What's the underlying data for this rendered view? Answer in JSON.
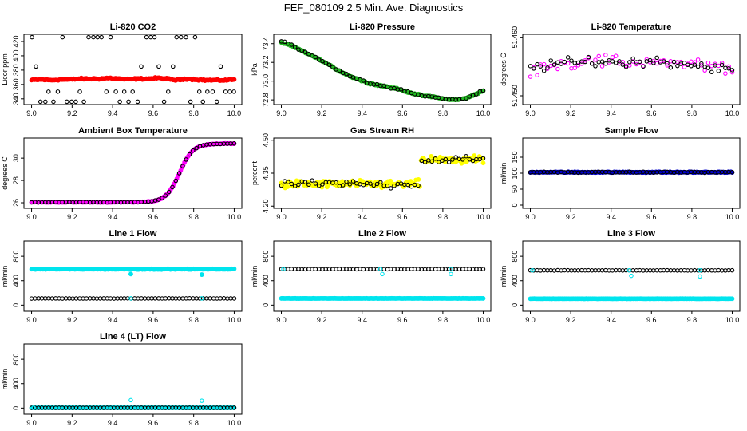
{
  "title": "FEF_080109  2.5 Min. Ave. Diagnostics",
  "chart_data": [
    {
      "type": "scatter",
      "title": "Li-820 CO2",
      "ylabel": "Licor ppm",
      "xlim": [
        9.0,
        10.0
      ],
      "ylim": [
        332,
        430
      ],
      "xticks": [
        "9.0",
        "9.2",
        "9.4",
        "9.6",
        "9.8",
        "10.0"
      ],
      "yticks": [
        "340",
        "360",
        "380",
        "400",
        "420"
      ],
      "series": [
        {
          "style": "filled",
          "color": "#ff0000",
          "gen": "wave",
          "values": [
            366,
            367,
            366,
            367,
            367,
            368,
            368,
            368,
            369,
            368,
            367,
            368,
            368,
            369,
            368,
            366,
            368,
            367,
            366,
            366,
            366,
            367
          ],
          "noise": 1.5
        },
        {
          "style": "open",
          "color": "#000000",
          "gen": "levels",
          "levels": [
            336,
            350,
            385,
            426
          ]
        }
      ]
    },
    {
      "type": "scatter",
      "title": "Li-820 Pressure",
      "ylabel": "kPa",
      "xlim": [
        9.0,
        10.0
      ],
      "ylim": [
        72.75,
        73.5
      ],
      "xticks": [
        "9.0",
        "9.2",
        "9.4",
        "9.6",
        "9.8",
        "10.0"
      ],
      "yticks": [
        "72.8",
        "73.0",
        "73.2",
        "73.4"
      ],
      "series": [
        {
          "style": "filled",
          "color": "#22bb22",
          "gen": "wave",
          "values": [
            73.41,
            73.38,
            73.33,
            73.28,
            73.23,
            73.17,
            73.11,
            73.06,
            73.02,
            72.98,
            72.96,
            72.94,
            72.92,
            72.89,
            72.86,
            72.84,
            72.83,
            72.81,
            72.8,
            72.81,
            72.85,
            72.9
          ],
          "noise": 0.01
        },
        {
          "style": "open",
          "color": "#000000",
          "gen": "wave",
          "values": [
            73.43,
            73.39,
            73.33,
            73.28,
            73.23,
            73.17,
            73.11,
            73.06,
            73.02,
            72.98,
            72.96,
            72.94,
            72.92,
            72.89,
            72.86,
            72.84,
            72.83,
            72.81,
            72.8,
            72.81,
            72.85,
            72.9
          ],
          "noise": 0.012
        }
      ]
    },
    {
      "type": "scatter",
      "title": "Li-820 Temperature",
      "ylabel": "degrees C",
      "xlim": [
        9.0,
        10.0
      ],
      "ylim": [
        51.4485,
        51.4605
      ],
      "xticks": [
        "9.0",
        "9.2",
        "9.4",
        "9.6",
        "9.8",
        "10.0"
      ],
      "yticks": [
        "51.450",
        "51.460"
      ],
      "series": [
        {
          "style": "open",
          "color": "#ff00ff",
          "gen": "wave",
          "values": [
            51.4548,
            51.455,
            51.4553,
            51.4555,
            51.4556,
            51.4557,
            51.4558,
            51.4559,
            51.4558,
            51.4557,
            51.4556,
            51.4558,
            51.4559,
            51.456,
            51.4558,
            51.4556,
            51.4555,
            51.4553,
            51.4551,
            51.4549,
            51.4546,
            51.4542
          ],
          "noise": 0.0017
        },
        {
          "style": "open",
          "color": "#000000",
          "gen": "wave",
          "values": [
            51.4548,
            51.455,
            51.4553,
            51.4555,
            51.4556,
            51.4557,
            51.4558,
            51.4559,
            51.4558,
            51.4557,
            51.4556,
            51.4558,
            51.4559,
            51.456,
            51.4558,
            51.4556,
            51.4555,
            51.4553,
            51.4551,
            51.4549,
            51.4546,
            51.4542
          ],
          "noise": 0.0012
        }
      ]
    },
    {
      "type": "scatter",
      "title": "Ambient Box Temperature",
      "ylabel": "degrees C",
      "xlim": [
        9.0,
        10.0
      ],
      "ylim": [
        25.5,
        31.8
      ],
      "xticks": [
        "9.0",
        "9.2",
        "9.4",
        "9.6",
        "9.8",
        "10.0"
      ],
      "yticks": [
        "26",
        "28",
        "30"
      ],
      "series": [
        {
          "style": "filled",
          "color": "#ff00ff",
          "gen": "logistic",
          "low": 26.05,
          "high": 31.3,
          "mid": 9.73,
          "k": 30,
          "noise": 0.04
        },
        {
          "style": "open",
          "color": "#000000",
          "gen": "logistic",
          "low": 26.05,
          "high": 31.3,
          "mid": 9.73,
          "k": 30,
          "noise": 0.03
        }
      ]
    },
    {
      "type": "scatter",
      "title": "Gas Stream RH",
      "ylabel": "percent",
      "xlim": [
        9.0,
        10.0
      ],
      "ylim": [
        4.19,
        4.51
      ],
      "xticks": [
        "9.0",
        "9.2",
        "9.4",
        "9.6",
        "9.8",
        "10.0"
      ],
      "yticks": [
        "4.20",
        "4.35",
        "4.50"
      ],
      "series": [
        {
          "style": "filled",
          "color": "#ffff00",
          "gen": "step",
          "low": 4.3,
          "high": 4.41,
          "at": 9.69,
          "noise": 0.025
        },
        {
          "style": "open",
          "color": "#000000",
          "gen": "step",
          "low": 4.3,
          "high": 4.41,
          "at": 9.69,
          "noise": 0.025
        }
      ]
    },
    {
      "type": "scatter",
      "title": "Sample Flow",
      "ylabel": "ml/min",
      "xlim": [
        9.0,
        10.0
      ],
      "ylim": [
        -10,
        210
      ],
      "xticks": [
        "9.0",
        "9.2",
        "9.4",
        "9.6",
        "9.8",
        "10.0"
      ],
      "yticks": [
        "0",
        "50",
        "100",
        "150"
      ],
      "series": [
        {
          "style": "filled",
          "color": "#0000cc",
          "gen": "const",
          "value": 103,
          "noise": 2
        },
        {
          "style": "open",
          "color": "#000000",
          "gen": "const",
          "value": 103,
          "noise": 2
        }
      ]
    },
    {
      "type": "scatter",
      "title": "Line 1 Flow",
      "ylabel": "ml/min",
      "xlim": [
        9.0,
        10.0
      ],
      "ylim": [
        -100,
        1050
      ],
      "xticks": [
        "9.0",
        "9.2",
        "9.4",
        "9.6",
        "9.8",
        "10.0"
      ],
      "yticks": [
        "0",
        "400",
        "800"
      ],
      "series": [
        {
          "style": "filled",
          "color": "#00e5ee",
          "gen": "const",
          "value": 590,
          "noise": 8,
          "outliers": [
            [
              9.49,
              510
            ],
            [
              9.84,
              500
            ]
          ]
        },
        {
          "style": "open",
          "color": "#000000",
          "gen": "const",
          "value": 110,
          "noise": 3
        },
        {
          "style": "open",
          "color": "#00e5ee",
          "gen": "sparse",
          "value": 110,
          "at": [
            9.49,
            9.84
          ],
          "outliers": [
            [
              9.49,
              510
            ],
            [
              9.84,
              500
            ]
          ]
        }
      ]
    },
    {
      "type": "scatter",
      "title": "Line 2 Flow",
      "ylabel": "ml/min",
      "xlim": [
        9.0,
        10.0
      ],
      "ylim": [
        -100,
        1050
      ],
      "xticks": [
        "9.0",
        "9.2",
        "9.4",
        "9.6",
        "9.8",
        "10.0"
      ],
      "yticks": [
        "0",
        "400",
        "800"
      ],
      "series": [
        {
          "style": "filled",
          "color": "#00e5ee",
          "gen": "const",
          "value": 110,
          "noise": 3
        },
        {
          "style": "open",
          "color": "#000000",
          "gen": "const",
          "value": 590,
          "noise": 4
        },
        {
          "style": "open",
          "color": "#00e5ee",
          "gen": "sparse",
          "value": 590,
          "at": [
            9.01,
            9.49,
            9.84
          ],
          "outliers": [
            [
              9.5,
              510
            ],
            [
              9.84,
              510
            ]
          ]
        }
      ]
    },
    {
      "type": "scatter",
      "title": "Line 3 Flow",
      "ylabel": "ml/min",
      "xlim": [
        9.0,
        10.0
      ],
      "ylim": [
        -100,
        1050
      ],
      "xticks": [
        "9.0",
        "9.2",
        "9.4",
        "9.6",
        "9.8",
        "10.0"
      ],
      "yticks": [
        "0",
        "400",
        "800"
      ],
      "series": [
        {
          "style": "filled",
          "color": "#00e5ee",
          "gen": "const",
          "value": 105,
          "noise": 3
        },
        {
          "style": "open",
          "color": "#000000",
          "gen": "const",
          "value": 570,
          "noise": 4
        },
        {
          "style": "open",
          "color": "#00e5ee",
          "gen": "sparse",
          "value": 570,
          "at": [
            9.01,
            9.49,
            9.84
          ],
          "outliers": [
            [
              9.5,
              480
            ],
            [
              9.84,
              470
            ]
          ]
        }
      ]
    },
    {
      "type": "scatter",
      "title": "Line 4 (LT) Flow",
      "ylabel": "ml/min",
      "xlim": [
        9.0,
        10.0
      ],
      "ylim": [
        -100,
        1050
      ],
      "xticks": [
        "9.0",
        "9.2",
        "9.4",
        "9.6",
        "9.8",
        "10.0"
      ],
      "yticks": [
        "0",
        "400",
        "800"
      ],
      "series": [
        {
          "style": "filled",
          "color": "#00e5ee",
          "gen": "const",
          "value": 5,
          "noise": 2
        },
        {
          "style": "open",
          "color": "#000000",
          "gen": "const",
          "value": 5,
          "noise": 2
        },
        {
          "style": "open",
          "color": "#00e5ee",
          "gen": "sparse",
          "value": 5,
          "at": [
            9.01
          ],
          "outliers": [
            [
              9.49,
              130
            ],
            [
              9.84,
              120
            ]
          ]
        }
      ]
    }
  ]
}
